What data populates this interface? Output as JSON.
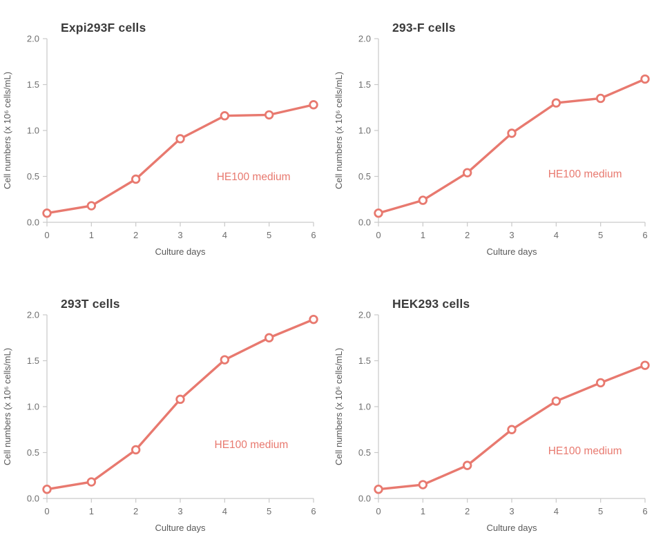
{
  "page": {
    "background": "#ffffff"
  },
  "colors": {
    "line": "#e8796f",
    "marker_fill": "#ffffff",
    "axis": "#c9c9c9",
    "tick_label": "#6e6e6e",
    "title_text": "#3b3b3b"
  },
  "chart_data": [
    {
      "type": "line",
      "title": "Expi293F cells",
      "xlabel": "Culture days",
      "ylabel": "Cell numbers (x 10⁶ cells/mL)",
      "x": [
        0,
        1,
        2,
        3,
        4,
        5,
        6
      ],
      "values": [
        0.1,
        0.18,
        0.47,
        0.91,
        1.16,
        1.17,
        1.28
      ],
      "xlim": [
        0,
        6
      ],
      "ylim": [
        0,
        2
      ],
      "x_ticks": [
        0,
        1,
        2,
        3,
        4,
        5,
        6
      ],
      "y_ticks": [
        0,
        0.5,
        1.0,
        1.5,
        2.0
      ],
      "grid": false,
      "legend": "none",
      "annotation": {
        "text": "HE100 medium",
        "x": 4.65,
        "y": 0.46
      }
    },
    {
      "type": "line",
      "title": "293-F cells",
      "xlabel": "Culture days",
      "ylabel": "Cell numbers (x 10⁶ cells/mL)",
      "x": [
        0,
        1,
        2,
        3,
        4,
        5,
        6
      ],
      "values": [
        0.1,
        0.24,
        0.54,
        0.97,
        1.3,
        1.35,
        1.56
      ],
      "xlim": [
        0,
        6
      ],
      "ylim": [
        0,
        2
      ],
      "x_ticks": [
        0,
        1,
        2,
        3,
        4,
        5,
        6
      ],
      "y_ticks": [
        0,
        0.5,
        1.0,
        1.5,
        2.0
      ],
      "grid": false,
      "legend": "none",
      "annotation": {
        "text": "HE100 medium",
        "x": 4.65,
        "y": 0.49
      }
    },
    {
      "type": "line",
      "title": "293T cells",
      "xlabel": "Culture days",
      "ylabel": "Cell numbers (x 10⁶ cells/mL)",
      "x": [
        0,
        1,
        2,
        3,
        4,
        5,
        6
      ],
      "values": [
        0.1,
        0.18,
        0.53,
        1.08,
        1.51,
        1.75,
        1.95
      ],
      "xlim": [
        0,
        6
      ],
      "ylim": [
        0,
        2
      ],
      "x_ticks": [
        0,
        1,
        2,
        3,
        4,
        5,
        6
      ],
      "y_ticks": [
        0,
        0.5,
        1.0,
        1.5,
        2.0
      ],
      "grid": false,
      "legend": "none",
      "annotation": {
        "text": "HE100 medium",
        "x": 4.6,
        "y": 0.55
      }
    },
    {
      "type": "line",
      "title": "HEK293 cells",
      "xlabel": "Culture days",
      "ylabel": "Cell numbers (x 10⁶ cells/mL)",
      "x": [
        0,
        1,
        2,
        3,
        4,
        5,
        6
      ],
      "values": [
        0.1,
        0.15,
        0.36,
        0.75,
        1.06,
        1.26,
        1.45
      ],
      "xlim": [
        0,
        6
      ],
      "ylim": [
        0,
        2
      ],
      "x_ticks": [
        0,
        1,
        2,
        3,
        4,
        5,
        6
      ],
      "y_ticks": [
        0,
        0.5,
        1.0,
        1.5,
        2.0
      ],
      "grid": false,
      "legend": "none",
      "annotation": {
        "text": "HE100 medium",
        "x": 4.65,
        "y": 0.48
      }
    }
  ]
}
